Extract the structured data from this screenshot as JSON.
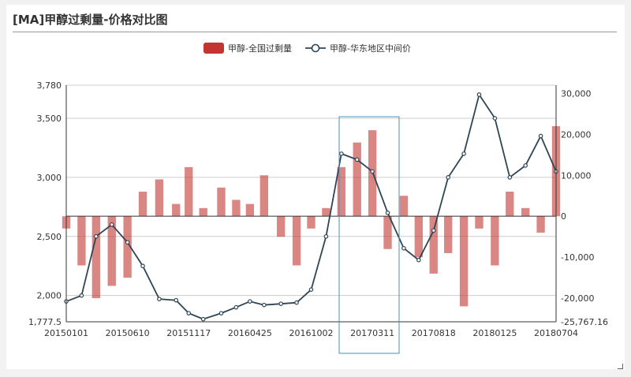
{
  "title": "[MA]甲醇过剩量-价格对比图",
  "colors": {
    "bar": "#c23531",
    "line": "#2f4554",
    "grid": "#cccccc",
    "highlight": "#4a90c0"
  },
  "chart_data": {
    "type": "bar+line",
    "legend_position": "top-center",
    "categories": [
      "20150101",
      "20150610",
      "20151117",
      "20160425",
      "20161002",
      "20170311",
      "20170818",
      "20180125",
      "20180704"
    ],
    "y_left": {
      "range": [
        1777.5,
        3780
      ],
      "ticks": [
        "3,780",
        "3,500",
        "3,000",
        "2,500",
        "2,000",
        "1,777.5"
      ]
    },
    "y_right": {
      "range": [
        -25767.16,
        32000
      ],
      "ticks": [
        "30,000",
        "20,000",
        "10,000",
        "0",
        "-10,000",
        "-20,000",
        "-25,767.16"
      ]
    },
    "series": [
      {
        "name": "甲醇-全国过剩量",
        "type": "bar",
        "axis": "right",
        "x": [
          "20150101",
          "20150210",
          "20150320",
          "20150430",
          "20150610",
          "20150720",
          "20150901",
          "20151015",
          "20151117",
          "20151225",
          "20160210",
          "20160320",
          "20160425",
          "20160601",
          "20160715",
          "20160825",
          "20161002",
          "20161110",
          "20161220",
          "20170130",
          "20170311",
          "20170420",
          "20170601",
          "20170710",
          "20170818",
          "20170925",
          "20171105",
          "20171215",
          "20180125",
          "20180305",
          "20180415",
          "20180525",
          "20180704"
        ],
        "values": [
          -3000,
          -12000,
          -20000,
          -17000,
          -15000,
          6000,
          9000,
          3000,
          12000,
          2000,
          7000,
          4000,
          3000,
          10000,
          -5000,
          -12000,
          -3000,
          2000,
          12000,
          18000,
          21000,
          -8000,
          5000,
          -10000,
          -14000,
          -9000,
          -22000,
          -3000,
          -12000,
          6000,
          2000,
          -4000,
          22000
        ]
      },
      {
        "name": "甲醇-华东地区中间价",
        "type": "line",
        "axis": "left",
        "x": [
          "20150101",
          "20150210",
          "20150320",
          "20150430",
          "20150610",
          "20150720",
          "20150901",
          "20151015",
          "20151117",
          "20151225",
          "20160210",
          "20160320",
          "20160425",
          "20160601",
          "20160715",
          "20160825",
          "20161002",
          "20161110",
          "20161220",
          "20170130",
          "20170311",
          "20170420",
          "20170601",
          "20170710",
          "20170818",
          "20170925",
          "20171105",
          "20171215",
          "20180125",
          "20180305",
          "20180415",
          "20180525",
          "20180704"
        ],
        "values": [
          1950,
          2000,
          2500,
          2600,
          2450,
          2250,
          1970,
          1960,
          1850,
          1800,
          1850,
          1900,
          1950,
          1920,
          1930,
          1940,
          2050,
          2500,
          3200,
          3150,
          3050,
          2700,
          2400,
          2300,
          2550,
          3000,
          3200,
          3700,
          3500,
          3000,
          3100,
          3350,
          3050
        ]
      }
    ]
  }
}
